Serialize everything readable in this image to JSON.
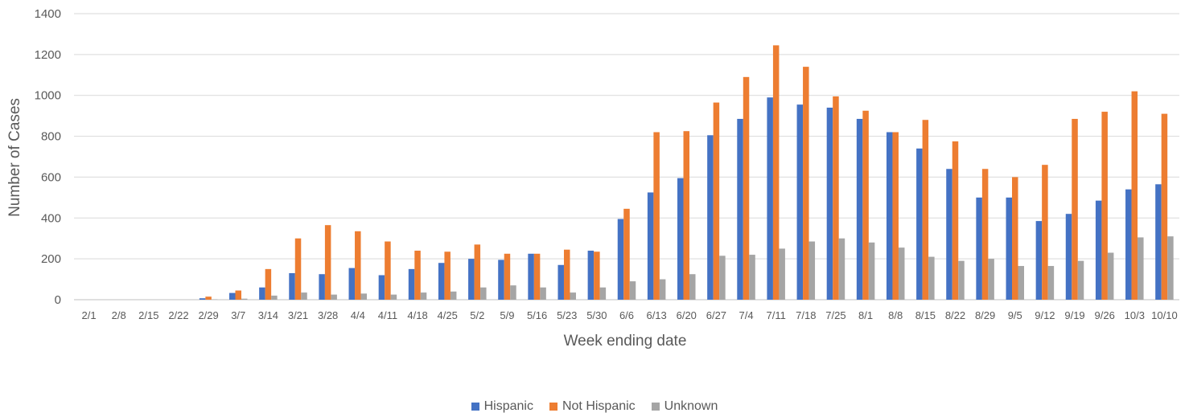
{
  "chart_data": {
    "type": "bar",
    "title": "",
    "xlabel": "Week ending date",
    "ylabel": "Number of Cases",
    "ylim": [
      0,
      1400
    ],
    "yticks": [
      0,
      200,
      400,
      600,
      800,
      1000,
      1200,
      1400
    ],
    "grid": true,
    "legend_position": "bottom",
    "categories": [
      "2/1",
      "2/8",
      "2/15",
      "2/22",
      "2/29",
      "3/7",
      "3/14",
      "3/21",
      "3/28",
      "4/4",
      "4/11",
      "4/18",
      "4/25",
      "5/2",
      "5/9",
      "5/16",
      "5/23",
      "5/30",
      "6/6",
      "6/13",
      "6/20",
      "6/27",
      "7/4",
      "7/11",
      "7/18",
      "7/25",
      "8/1",
      "8/8",
      "8/15",
      "8/22",
      "8/29",
      "9/5",
      "9/12",
      "9/19",
      "9/26",
      "10/3",
      "10/10"
    ],
    "series": [
      {
        "name": "Hispanic",
        "color": "#4472c4",
        "values": [
          0,
          0,
          0,
          0,
          7,
          33,
          60,
          130,
          125,
          155,
          120,
          150,
          180,
          200,
          195,
          225,
          170,
          240,
          395,
          525,
          595,
          805,
          885,
          990,
          955,
          940,
          885,
          820,
          740,
          640,
          500,
          500,
          385,
          420,
          485,
          540,
          565
        ]
      },
      {
        "name": "Not Hispanic",
        "color": "#ed7d31",
        "values": [
          0,
          0,
          0,
          0,
          15,
          45,
          150,
          300,
          365,
          335,
          285,
          240,
          235,
          270,
          225,
          225,
          245,
          235,
          445,
          820,
          825,
          965,
          1090,
          1245,
          1140,
          995,
          925,
          820,
          880,
          775,
          640,
          600,
          660,
          885,
          920,
          1020,
          910
        ]
      },
      {
        "name": "Unknown",
        "color": "#a5a5a5",
        "values": [
          0,
          0,
          0,
          0,
          2,
          5,
          20,
          35,
          25,
          30,
          25,
          35,
          40,
          60,
          70,
          60,
          35,
          60,
          90,
          100,
          125,
          215,
          220,
          250,
          285,
          300,
          280,
          255,
          210,
          190,
          200,
          165,
          165,
          190,
          230,
          305,
          310
        ]
      }
    ]
  }
}
